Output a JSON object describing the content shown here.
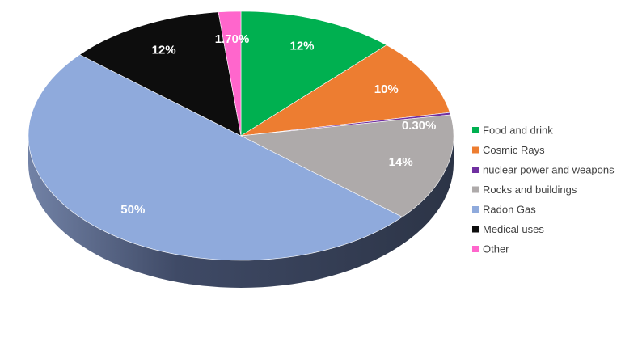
{
  "chart_data": {
    "type": "pie",
    "title": "",
    "legend_position": "right",
    "slices": [
      {
        "label": "Food and drink",
        "value": 12,
        "display": "12%",
        "color": "#00b050"
      },
      {
        "label": "Cosmic Rays",
        "value": 10,
        "display": "10%",
        "color": "#ed7d31"
      },
      {
        "label": "nuclear power and weapons",
        "value": 0.3,
        "display": "0.30%",
        "color": "#7030a0"
      },
      {
        "label": "Rocks and buildings",
        "value": 14,
        "display": "14%",
        "color": "#aeaaaa"
      },
      {
        "label": "Radon Gas",
        "value": 50,
        "display": "50%",
        "color": "#8faadc"
      },
      {
        "label": "Medical uses",
        "value": 12,
        "display": "12%",
        "color": "#0d0d0d"
      },
      {
        "label": "Other",
        "value": 1.7,
        "display": "1.70%",
        "color": "#ff66cc"
      }
    ]
  }
}
